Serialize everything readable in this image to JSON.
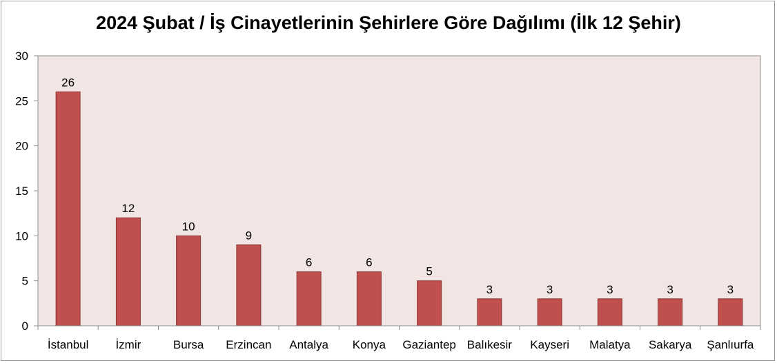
{
  "chart_data": {
    "type": "bar",
    "title": "2024 Şubat / İş Cinayetlerinin Şehirlere Göre Dağılımı (İlk 12 Şehir)",
    "xlabel": "",
    "ylabel": "",
    "categories": [
      "İstanbul",
      "İzmir",
      "Bursa",
      "Erzincan",
      "Antalya",
      "Konya",
      "Gaziantep",
      "Balıkesir",
      "Kayseri",
      "Malatya",
      "Sakarya",
      "Şanlıurfa"
    ],
    "values": [
      26,
      12,
      10,
      9,
      6,
      6,
      5,
      3,
      3,
      3,
      3,
      3
    ],
    "ylim": [
      0,
      30
    ],
    "yticks": [
      0,
      5,
      10,
      15,
      20,
      25,
      30
    ],
    "data_labels": true,
    "grid": false,
    "legend": "none",
    "colors": {
      "bar_fill": "#C0504D",
      "bar_stroke": "#8B3432",
      "plot_background": "#F2E6E5",
      "axis": "#8C8C8C"
    }
  }
}
